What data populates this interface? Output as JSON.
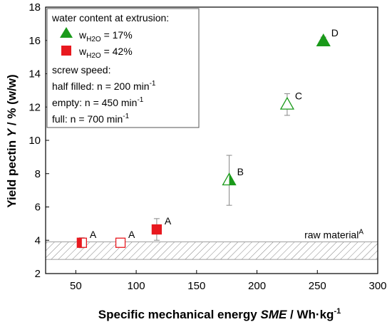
{
  "chart_data": {
    "type": "scatter",
    "xlabel_main": "Specific mechanical energy ",
    "xlabel_symbol": "SME",
    "xlabel_unit": " / Wh·kg",
    "xlabel_exp": "-1",
    "ylabel_main": "Yield pectin ",
    "ylabel_symbol": "Y",
    "ylabel_unit": " / % (w/w)",
    "xlim": [
      25,
      300
    ],
    "ylim": [
      2,
      18
    ],
    "x_ticks": [
      50,
      100,
      150,
      200,
      250,
      300
    ],
    "y_ticks": [
      2,
      4,
      6,
      8,
      10,
      12,
      14,
      16,
      18
    ],
    "grid": false,
    "raw_material": {
      "label": "raw material",
      "superscript": "A",
      "y_low": 2.85,
      "y_high": 3.9
    },
    "series": [
      {
        "name": "w_H2O = 17%",
        "color": "#1a9a1a",
        "marker": "triangle",
        "points": [
          {
            "x": 177,
            "y": 7.6,
            "err": 1.5,
            "fill": "half",
            "label": "B"
          },
          {
            "x": 225,
            "y": 12.15,
            "err": 0.65,
            "fill": "empty",
            "label": "C"
          },
          {
            "x": 255,
            "y": 15.95,
            "err": 0.25,
            "fill": "full",
            "label": "D"
          }
        ]
      },
      {
        "name": "w_H2O = 42%",
        "color": "#e8191f",
        "marker": "square",
        "points": [
          {
            "x": 55,
            "y": 3.85,
            "err": 0.3,
            "fill": "half",
            "label": "A"
          },
          {
            "x": 87,
            "y": 3.85,
            "err": 0.15,
            "fill": "empty",
            "label": "A"
          },
          {
            "x": 117,
            "y": 4.65,
            "err": 0.65,
            "fill": "full",
            "label": "A"
          }
        ]
      }
    ],
    "legend": {
      "placement": "top-left",
      "title": "water content at extrusion:",
      "entry1_prefix": "w",
      "entry1_sub": "H2O",
      "entry1_suffix": " = 17%",
      "entry2_prefix": "w",
      "entry2_sub": "H2O",
      "entry2_suffix": " = 42%",
      "speed_title": "screw speed:",
      "speed_half": " half filled: n = 200 min",
      "speed_empty": " empty: n = 450 min",
      "speed_full": " full: n = 700 min",
      "speed_exp": "-1"
    }
  }
}
